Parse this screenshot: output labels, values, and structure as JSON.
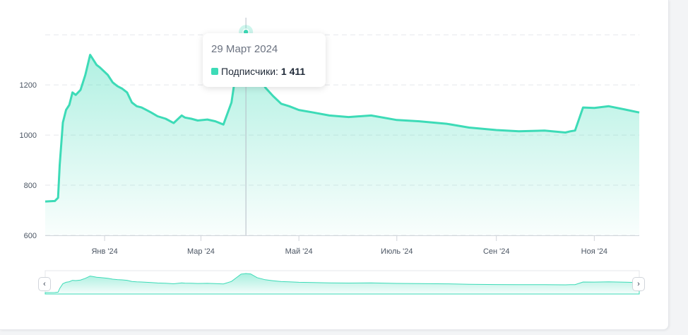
{
  "chart_data": {
    "type": "area",
    "x": [
      "2023-11-25",
      "2023-12-01",
      "2023-12-03",
      "2023-12-04",
      "2023-12-06",
      "2023-12-08",
      "2023-12-10",
      "2023-12-12",
      "2023-12-14",
      "2023-12-17",
      "2023-12-20",
      "2023-12-23",
      "2023-12-25",
      "2023-12-27",
      "2023-12-29",
      "2024-01-03",
      "2024-01-06",
      "2024-01-09",
      "2024-01-12",
      "2024-01-15",
      "2024-01-18",
      "2024-01-21",
      "2024-01-24",
      "2024-01-27",
      "2024-01-30",
      "2024-02-03",
      "2024-02-08",
      "2024-02-13",
      "2024-02-18",
      "2024-02-20",
      "2024-02-24",
      "2024-02-28",
      "2024-03-05",
      "2024-03-10",
      "2024-03-15",
      "2024-03-20",
      "2024-03-23",
      "2024-03-26",
      "2024-03-29",
      "2024-04-01",
      "2024-04-05",
      "2024-04-10",
      "2024-04-15",
      "2024-04-20",
      "2024-04-25",
      "2024-05-01",
      "2024-05-10",
      "2024-05-20",
      "2024-06-01",
      "2024-06-15",
      "2024-07-01",
      "2024-07-15",
      "2024-08-01",
      "2024-08-15",
      "2024-09-01",
      "2024-09-15",
      "2024-10-01",
      "2024-10-14",
      "2024-10-17",
      "2024-10-20",
      "2024-10-25",
      "2024-11-01",
      "2024-11-10",
      "2024-11-20",
      "2024-11-29"
    ],
    "series": [
      {
        "name": "Подписчики",
        "values": [
          735,
          737,
          750,
          880,
          1050,
          1100,
          1120,
          1170,
          1160,
          1180,
          1240,
          1320,
          1300,
          1280,
          1270,
          1240,
          1210,
          1195,
          1185,
          1170,
          1130,
          1115,
          1110,
          1100,
          1090,
          1075,
          1065,
          1048,
          1078,
          1070,
          1065,
          1058,
          1062,
          1055,
          1042,
          1130,
          1260,
          1390,
          1411,
          1395,
          1265,
          1190,
          1155,
          1125,
          1115,
          1100,
          1090,
          1078,
          1072,
          1078,
          1060,
          1055,
          1045,
          1030,
          1020,
          1015,
          1018,
          1010,
          1015,
          1018,
          1110,
          1108,
          1115,
          1102,
          1090
        ]
      }
    ],
    "y_ticks": [
      600,
      800,
      1000,
      1200
    ],
    "ylim": [
      600,
      1440
    ],
    "x_ticks": [
      {
        "date": "2024-01-01",
        "label": "Янв '24"
      },
      {
        "date": "2024-03-01",
        "label": "Мар '24"
      },
      {
        "date": "2024-05-01",
        "label": "Май '24"
      },
      {
        "date": "2024-07-01",
        "label": "Июль '24"
      },
      {
        "date": "2024-09-01",
        "label": "Сен '24"
      },
      {
        "date": "2024-11-01",
        "label": "Ноя '24"
      }
    ],
    "xlim": [
      "2023-11-25",
      "2024-11-29"
    ],
    "grid": "horizontal dashed",
    "colors": {
      "line": "#3ddbb7",
      "fill": "#3ddbb7",
      "crosshair": "#9ca3af"
    },
    "tooltip": {
      "date": "2024-03-29",
      "date_label": "29 Март 2024",
      "series_label": "Подписчики:",
      "value_label": "1 411"
    }
  },
  "navigator": {
    "left_icon": "chevron-left-icon",
    "right_icon": "chevron-right-icon",
    "left_glyph": "‹",
    "right_glyph": "›"
  }
}
